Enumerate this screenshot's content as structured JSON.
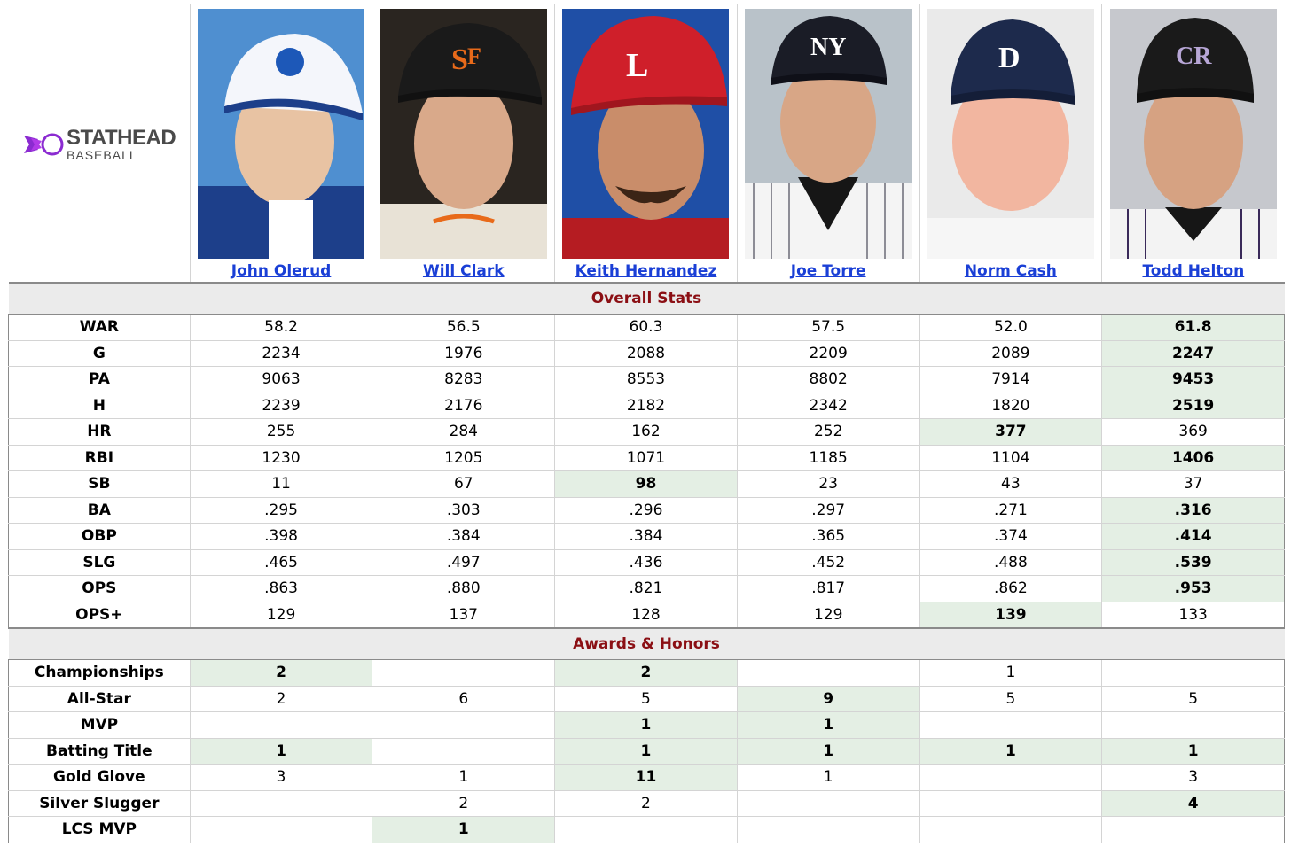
{
  "brand": {
    "main": "STATHEAD",
    "sub": "BASEBALL"
  },
  "colors": {
    "best_cell": "#e4efe4",
    "section_text": "#8b0f14",
    "link": "#1a3fd6"
  },
  "players": [
    {
      "name": "John Olerud",
      "photo": "player-photo-blue-jays-cap"
    },
    {
      "name": "Will Clark",
      "photo": "player-photo-giants-cap"
    },
    {
      "name": "Keith Hernandez",
      "photo": "player-photo-cardinals-cap"
    },
    {
      "name": "Joe Torre",
      "photo": "player-photo-yankees-cap"
    },
    {
      "name": "Norm Cash",
      "photo": "player-photo-tigers-cap"
    },
    {
      "name": "Todd Helton",
      "photo": "player-photo-rockies-cap"
    }
  ],
  "sections": [
    {
      "title": "Overall Stats",
      "rows": [
        {
          "label": "WAR",
          "values": [
            "58.2",
            "56.5",
            "60.3",
            "57.5",
            "52.0",
            "61.8"
          ],
          "best": [
            5
          ]
        },
        {
          "label": "G",
          "values": [
            "2234",
            "1976",
            "2088",
            "2209",
            "2089",
            "2247"
          ],
          "best": [
            5
          ]
        },
        {
          "label": "PA",
          "values": [
            "9063",
            "8283",
            "8553",
            "8802",
            "7914",
            "9453"
          ],
          "best": [
            5
          ]
        },
        {
          "label": "H",
          "values": [
            "2239",
            "2176",
            "2182",
            "2342",
            "1820",
            "2519"
          ],
          "best": [
            5
          ]
        },
        {
          "label": "HR",
          "values": [
            "255",
            "284",
            "162",
            "252",
            "377",
            "369"
          ],
          "best": [
            4
          ]
        },
        {
          "label": "RBI",
          "values": [
            "1230",
            "1205",
            "1071",
            "1185",
            "1104",
            "1406"
          ],
          "best": [
            5
          ]
        },
        {
          "label": "SB",
          "values": [
            "11",
            "67",
            "98",
            "23",
            "43",
            "37"
          ],
          "best": [
            2
          ]
        },
        {
          "label": "BA",
          "values": [
            ".295",
            ".303",
            ".296",
            ".297",
            ".271",
            ".316"
          ],
          "best": [
            5
          ]
        },
        {
          "label": "OBP",
          "values": [
            ".398",
            ".384",
            ".384",
            ".365",
            ".374",
            ".414"
          ],
          "best": [
            5
          ]
        },
        {
          "label": "SLG",
          "values": [
            ".465",
            ".497",
            ".436",
            ".452",
            ".488",
            ".539"
          ],
          "best": [
            5
          ]
        },
        {
          "label": "OPS",
          "values": [
            ".863",
            ".880",
            ".821",
            ".817",
            ".862",
            ".953"
          ],
          "best": [
            5
          ]
        },
        {
          "label": "OPS+",
          "values": [
            "129",
            "137",
            "128",
            "129",
            "139",
            "133"
          ],
          "best": [
            4
          ]
        }
      ]
    },
    {
      "title": "Awards & Honors",
      "rows": [
        {
          "label": "Championships",
          "values": [
            "2",
            "",
            "2",
            "",
            "1",
            ""
          ],
          "best": [
            0,
            2
          ]
        },
        {
          "label": "All-Star",
          "values": [
            "2",
            "6",
            "5",
            "9",
            "5",
            "5"
          ],
          "best": [
            3
          ]
        },
        {
          "label": "MVP",
          "values": [
            "",
            "",
            "1",
            "1",
            "",
            ""
          ],
          "best": [
            2,
            3
          ]
        },
        {
          "label": "Batting Title",
          "values": [
            "1",
            "",
            "1",
            "1",
            "1",
            "1"
          ],
          "best": [
            0,
            2,
            3,
            4,
            5
          ]
        },
        {
          "label": "Gold Glove",
          "values": [
            "3",
            "1",
            "11",
            "1",
            "",
            "3"
          ],
          "best": [
            2
          ]
        },
        {
          "label": "Silver Slugger",
          "values": [
            "",
            "2",
            "2",
            "",
            "",
            "4"
          ],
          "best": [
            5
          ]
        },
        {
          "label": "LCS MVP",
          "values": [
            "",
            "1",
            "",
            "",
            "",
            ""
          ],
          "best": [
            1
          ]
        }
      ]
    }
  ]
}
